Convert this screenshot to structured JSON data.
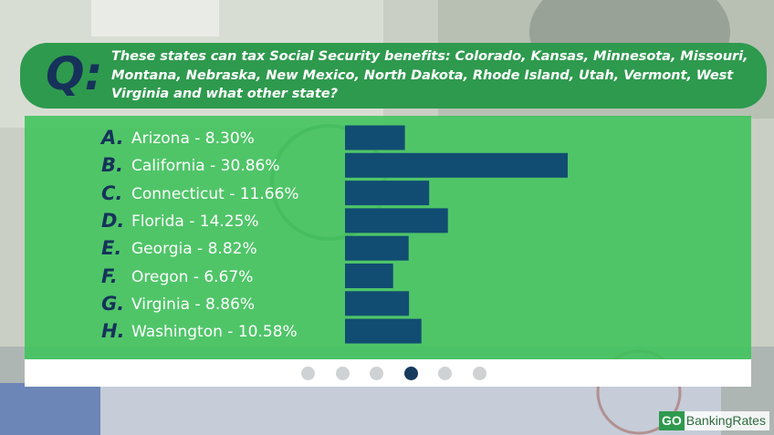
{
  "question": {
    "label": "Q:",
    "text": "These states can tax Social Security benefits: Colorado, Kansas, Minnesota, Missouri, Montana, Nebraska, New Mexico, North Dakota, Rhode Island, Utah, Vermont, West Virginia and what other state?"
  },
  "chart_data": {
    "type": "bar",
    "orientation": "horizontal",
    "categories": [
      "Arizona",
      "California",
      "Connecticut",
      "Florida",
      "Georgia",
      "Oregon",
      "Virginia",
      "Washington"
    ],
    "letters": [
      "A.",
      "B.",
      "C.",
      "D.",
      "E.",
      "F.",
      "G.",
      "H."
    ],
    "answer_labels": [
      "Arizona - 8.30%",
      "California - 30.86%",
      "Connecticut - 11.66%",
      "Florida - 14.25%",
      "Georgia - 8.82%",
      "Oregon - 6.67%",
      "Virginia - 8.86%",
      "Washington - 10.58%"
    ],
    "values": [
      8.3,
      30.86,
      11.66,
      14.25,
      8.82,
      6.67,
      8.86,
      10.58
    ],
    "unit": "%",
    "bar_color": "#114d72",
    "grid": false,
    "legend": "none"
  },
  "pager": {
    "count": 6,
    "active_index": 3
  },
  "brand": {
    "go": "GO",
    "rest": "BankingRates"
  },
  "colors": {
    "accent_green": "#2e9a4e",
    "navy": "#16325a",
    "bar": "#114d72"
  }
}
